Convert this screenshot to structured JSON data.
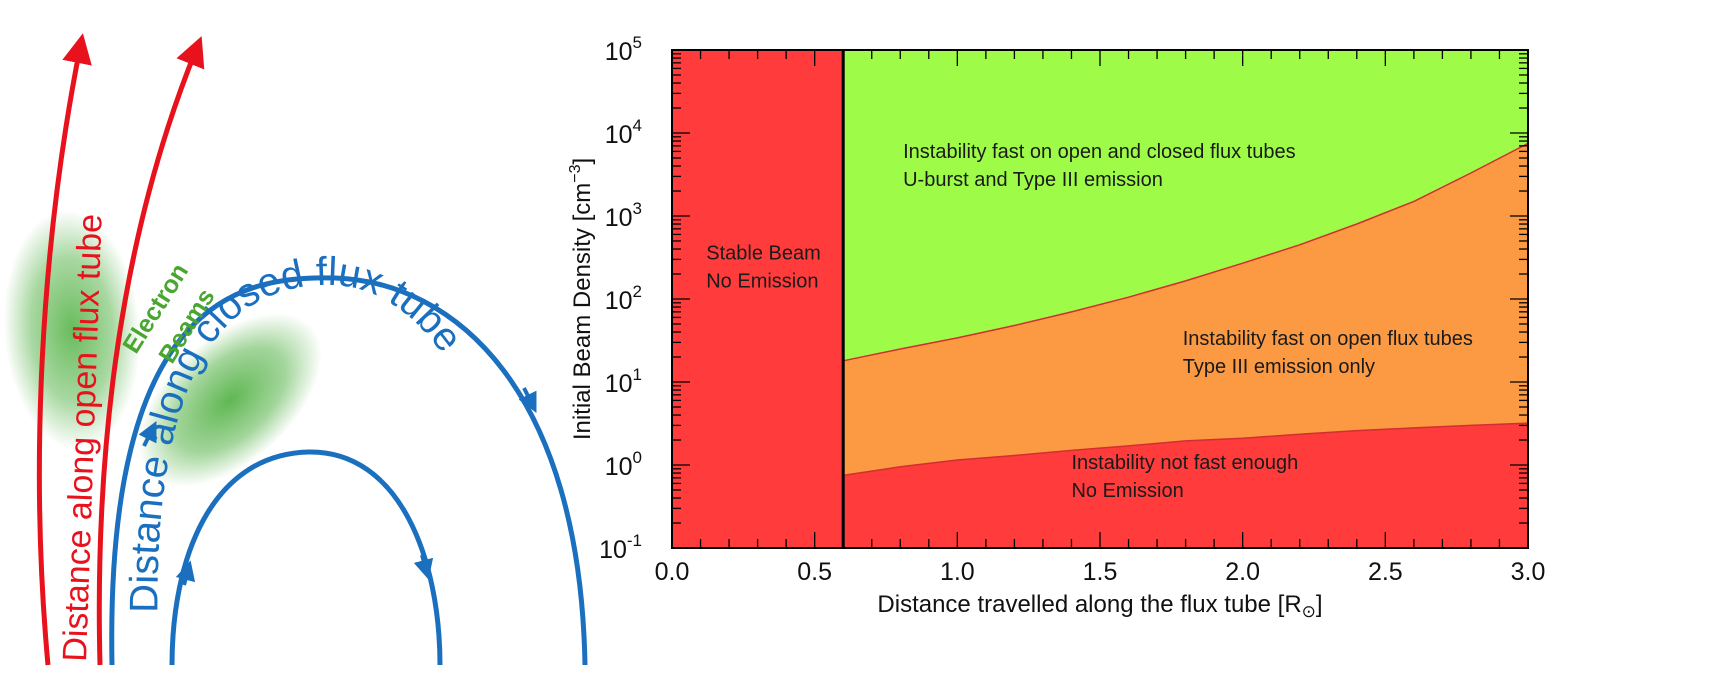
{
  "diagram": {
    "open_tube_label": "Distance along open flux tube",
    "closed_tube_label": "Distance along closed flux tube",
    "beam_label_line1": "Electron",
    "beam_label_line2": "Beams",
    "colors": {
      "open_tube": "#e8121c",
      "closed_tube": "#1b6fbf",
      "beam": "#3aa62a"
    }
  },
  "chart_data": {
    "type": "area",
    "xlabel": "Distance travelled along the flux tube [R",
    "xlabel_symbol": "⊙",
    "xlabel_close": "]",
    "ylabel": "Initial Beam Density [cm",
    "ylabel_exp": "−3",
    "ylabel_close": "]",
    "xlim": [
      0.0,
      3.0
    ],
    "ylim": [
      0.1,
      100000
    ],
    "yscale": "log",
    "xticks": [
      {
        "value": 0.0,
        "label": "0.0"
      },
      {
        "value": 0.5,
        "label": "0.5"
      },
      {
        "value": 1.0,
        "label": "1.0"
      },
      {
        "value": 1.5,
        "label": "1.5"
      },
      {
        "value": 2.0,
        "label": "2.0"
      },
      {
        "value": 2.5,
        "label": "2.5"
      },
      {
        "value": 3.0,
        "label": "3.0"
      }
    ],
    "yticks": [
      {
        "value": 0.1,
        "base": "10",
        "exp": "-1"
      },
      {
        "value": 1,
        "base": "10",
        "exp": "0"
      },
      {
        "value": 10,
        "base": "10",
        "exp": "1"
      },
      {
        "value": 100,
        "base": "10",
        "exp": "2"
      },
      {
        "value": 1000,
        "base": "10",
        "exp": "3"
      },
      {
        "value": 10000,
        "base": "10",
        "exp": "4"
      },
      {
        "value": 100000,
        "base": "10",
        "exp": "5"
      }
    ],
    "boundary_x": 0.6,
    "lower_curve": {
      "x": [
        0.6,
        0.8,
        1.0,
        1.2,
        1.4,
        1.6,
        1.8,
        2.0,
        2.2,
        2.4,
        2.6,
        2.8,
        3.0
      ],
      "y": [
        0.75,
        0.95,
        1.15,
        1.3,
        1.5,
        1.7,
        1.95,
        2.1,
        2.35,
        2.6,
        2.8,
        3.0,
        3.2
      ]
    },
    "upper_curve": {
      "x": [
        0.6,
        0.8,
        1.0,
        1.2,
        1.4,
        1.6,
        1.8,
        2.0,
        2.2,
        2.4,
        2.6,
        2.8,
        3.0
      ],
      "y": [
        18,
        25,
        34,
        48,
        70,
        105,
        165,
        270,
        450,
        800,
        1500,
        3300,
        7500
      ]
    },
    "regions": [
      {
        "name": "stable",
        "color": "#ff3b3b",
        "line1": "Stable Beam",
        "line2": "No Emission",
        "x": 0.12,
        "y": 300
      },
      {
        "name": "green",
        "color": "#9efc48",
        "line1": "Instability fast on open and closed flux tubes",
        "line2": "U-burst and Type III emission",
        "x": 0.81,
        "y": 5000
      },
      {
        "name": "orange",
        "color": "#fb9a43",
        "line1": "Instability fast on open flux tubes",
        "line2": "Type III emission only",
        "x": 1.79,
        "y": 28
      },
      {
        "name": "lower",
        "color": "#ff3b3b",
        "line1": "Instability not fast enough",
        "line2": "No Emission",
        "x": 1.4,
        "y": 0.9
      }
    ]
  }
}
